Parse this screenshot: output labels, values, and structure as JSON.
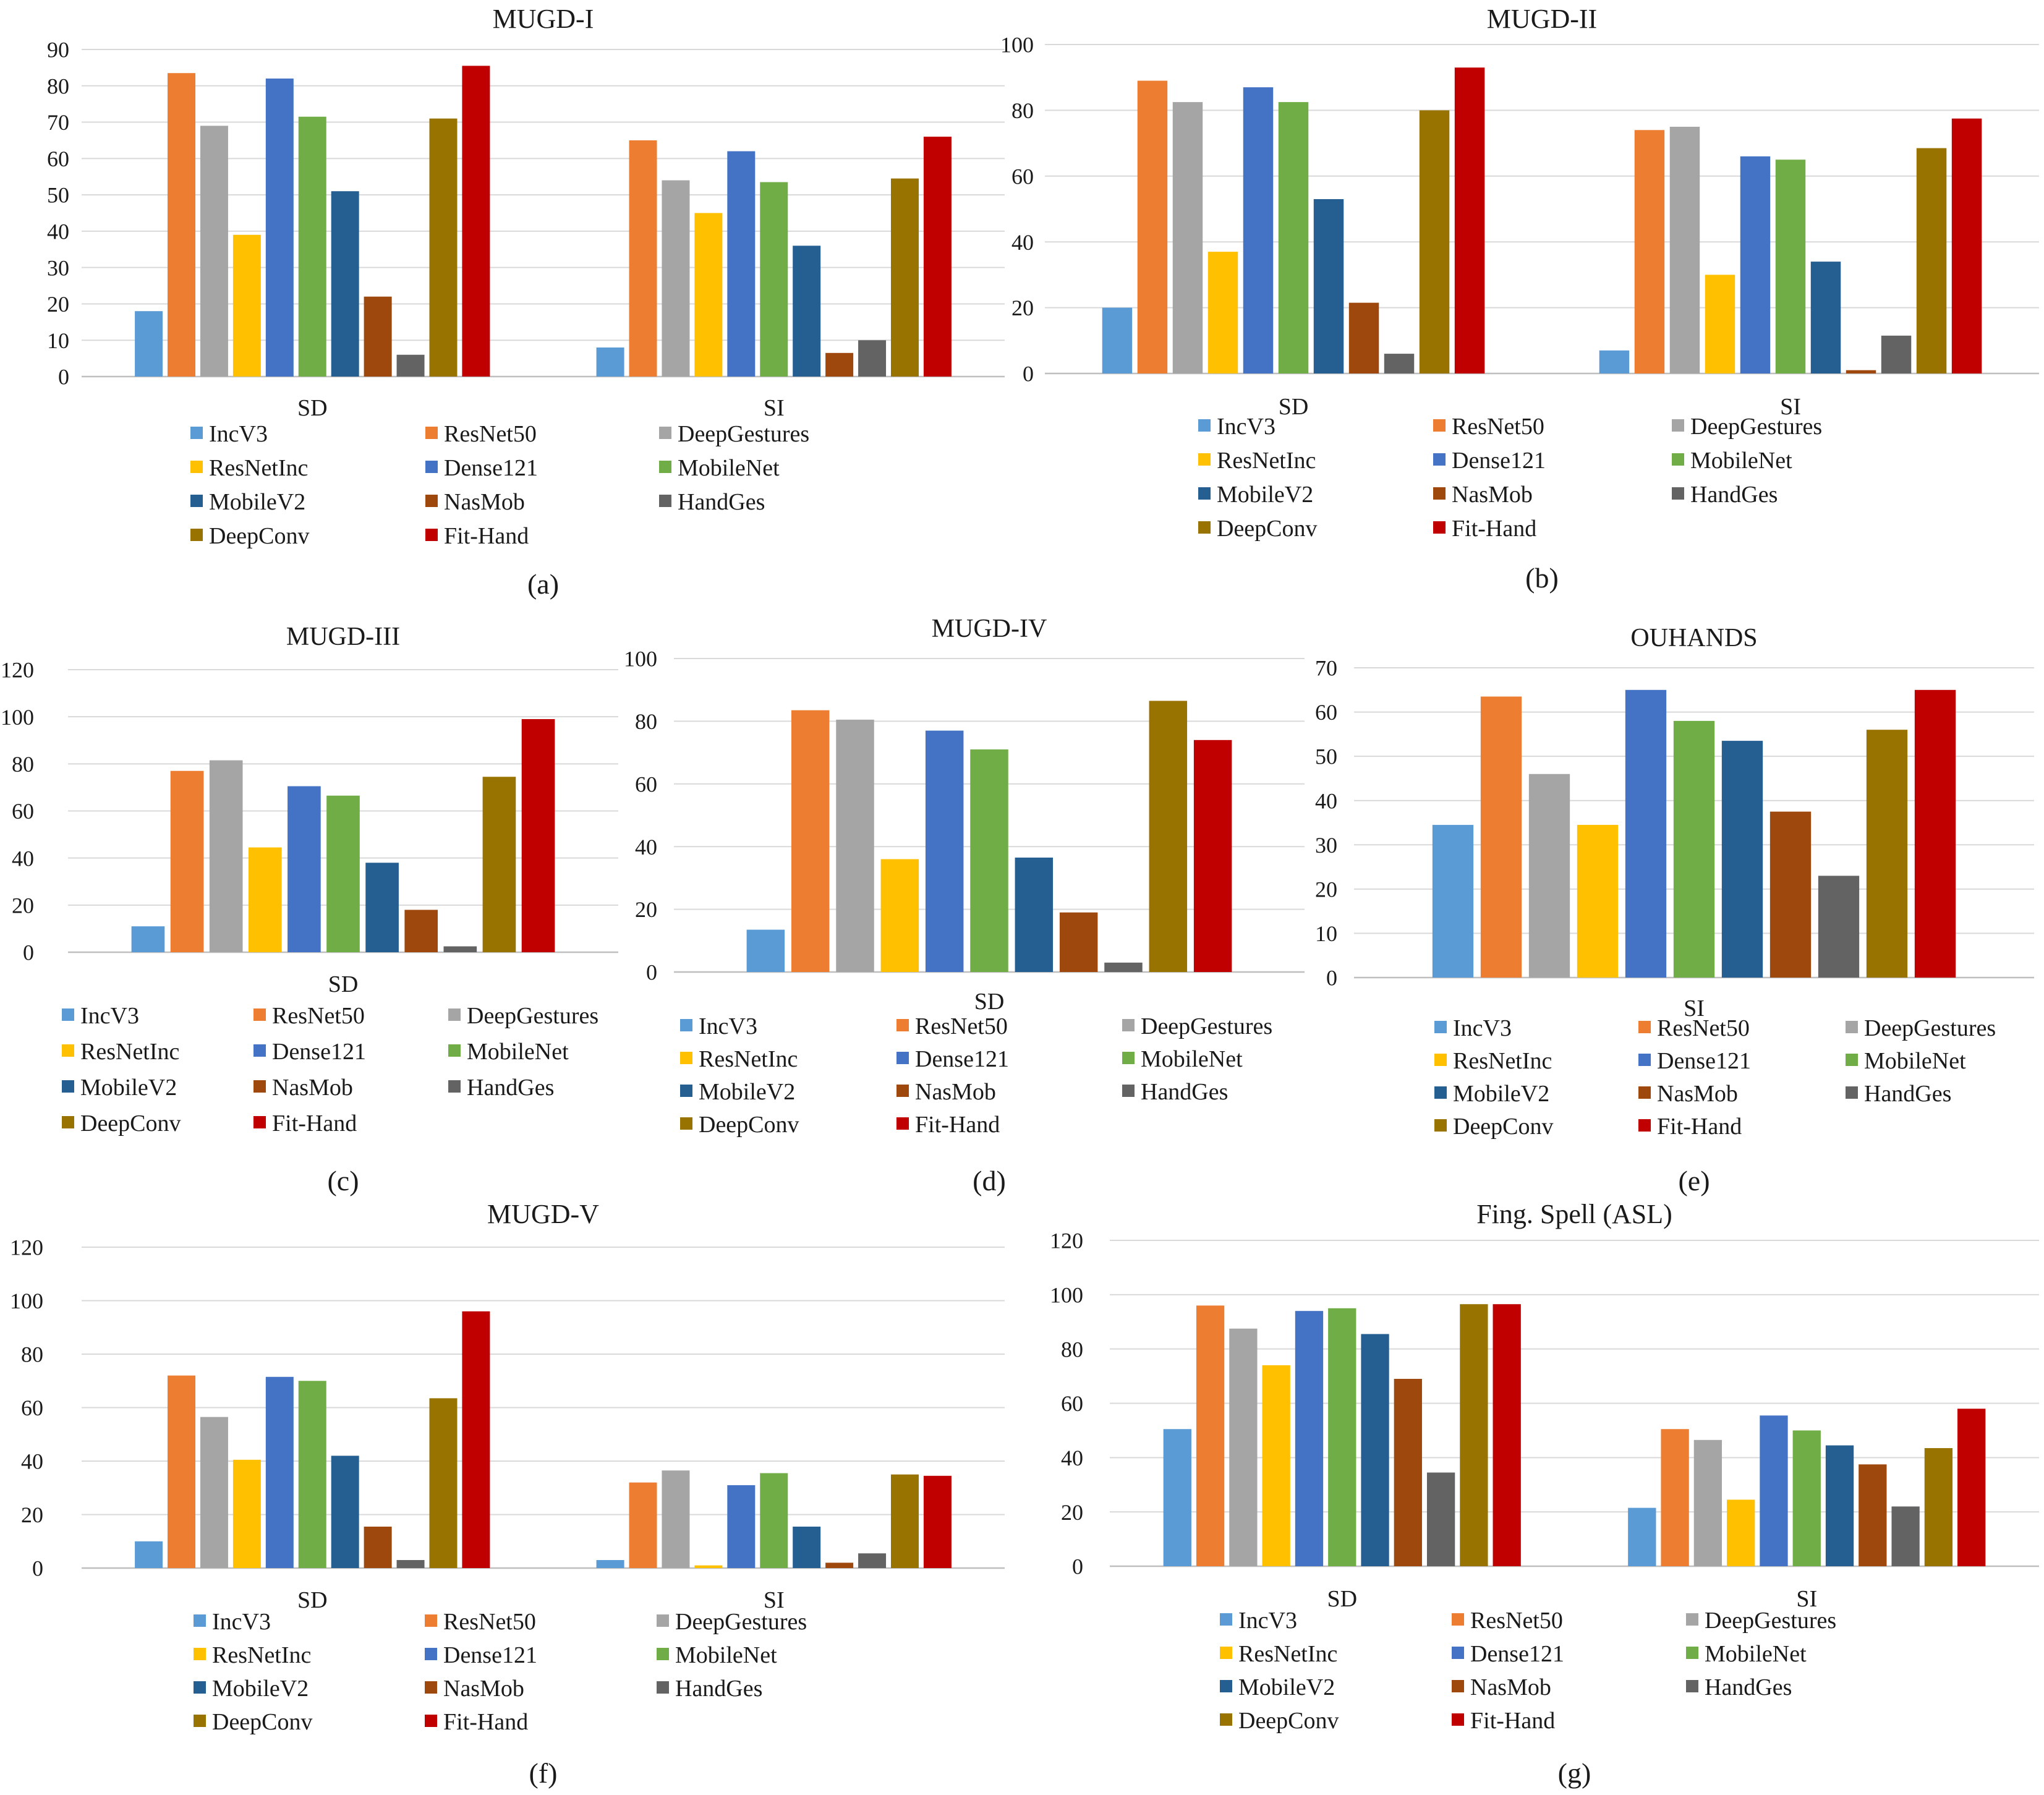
{
  "palette": [
    "#5B9BD5",
    "#ED7D31",
    "#A5A5A5",
    "#FFC000",
    "#4472C4",
    "#70AD47",
    "#255E91",
    "#9E480E",
    "#636363",
    "#997300",
    "#C00000"
  ],
  "legend_labels": [
    "IncV3",
    "ResNet50",
    "DeepGestures",
    "ResNetInc",
    "Dense121",
    "MobileNet",
    "MobileV2",
    "NasMob",
    "HandGes",
    "DeepConv",
    "Fit-Hand"
  ],
  "chart_data": [
    {
      "id": "a",
      "panel_label": "(a)",
      "type": "bar",
      "title": "MUGD-I",
      "categories": [
        "SD",
        "SI"
      ],
      "ylim": [
        0,
        90
      ],
      "ystep": 10,
      "series": [
        {
          "name": "IncV3",
          "values": [
            18,
            8
          ]
        },
        {
          "name": "ResNet50",
          "values": [
            83.5,
            65
          ]
        },
        {
          "name": "DeepGestures",
          "values": [
            69,
            54
          ]
        },
        {
          "name": "ResNetInc",
          "values": [
            39,
            45
          ]
        },
        {
          "name": "Dense121",
          "values": [
            82,
            62
          ]
        },
        {
          "name": "MobileNet",
          "values": [
            71.5,
            53.5
          ]
        },
        {
          "name": "MobileV2",
          "values": [
            51,
            36
          ]
        },
        {
          "name": "NasMob",
          "values": [
            22,
            6.5
          ]
        },
        {
          "name": "HandGes",
          "values": [
            6,
            10
          ]
        },
        {
          "name": "DeepConv",
          "values": [
            71,
            54.5
          ]
        },
        {
          "name": "Fit-Hand",
          "values": [
            85.5,
            66
          ]
        }
      ]
    },
    {
      "id": "b",
      "panel_label": "(b)",
      "type": "bar",
      "title": "MUGD-II",
      "categories": [
        "SD",
        "SI"
      ],
      "ylim": [
        0,
        100
      ],
      "ystep": 20,
      "series": [
        {
          "name": "IncV3",
          "values": [
            20,
            7
          ]
        },
        {
          "name": "ResNet50",
          "values": [
            89,
            74
          ]
        },
        {
          "name": "DeepGestures",
          "values": [
            82.5,
            75
          ]
        },
        {
          "name": "ResNetInc",
          "values": [
            37,
            30
          ]
        },
        {
          "name": "Dense121",
          "values": [
            87,
            66
          ]
        },
        {
          "name": "MobileNet",
          "values": [
            82.5,
            65
          ]
        },
        {
          "name": "MobileV2",
          "values": [
            53,
            34
          ]
        },
        {
          "name": "NasMob",
          "values": [
            21.5,
            1
          ]
        },
        {
          "name": "HandGes",
          "values": [
            6,
            11.5
          ]
        },
        {
          "name": "DeepConv",
          "values": [
            80,
            68.5
          ]
        },
        {
          "name": "Fit-Hand",
          "values": [
            93,
            77.5
          ]
        }
      ]
    },
    {
      "id": "c",
      "panel_label": "(c)",
      "type": "bar",
      "title": "MUGD-III",
      "categories": [
        "SD"
      ],
      "ylim": [
        0,
        120
      ],
      "ystep": 20,
      "series": [
        {
          "name": "IncV3",
          "values": [
            11
          ]
        },
        {
          "name": "ResNet50",
          "values": [
            77
          ]
        },
        {
          "name": "DeepGestures",
          "values": [
            81.5
          ]
        },
        {
          "name": "ResNetInc",
          "values": [
            44.5
          ]
        },
        {
          "name": "Dense121",
          "values": [
            70.5
          ]
        },
        {
          "name": "MobileNet",
          "values": [
            66.5
          ]
        },
        {
          "name": "MobileV2",
          "values": [
            38
          ]
        },
        {
          "name": "NasMob",
          "values": [
            18
          ]
        },
        {
          "name": "HandGes",
          "values": [
            2.5
          ]
        },
        {
          "name": "DeepConv",
          "values": [
            74.5
          ]
        },
        {
          "name": "Fit-Hand",
          "values": [
            99
          ]
        }
      ]
    },
    {
      "id": "d",
      "panel_label": "(d)",
      "type": "bar",
      "title": "MUGD-IV",
      "categories": [
        "SD"
      ],
      "ylim": [
        0,
        100
      ],
      "ystep": 20,
      "series": [
        {
          "name": "IncV3",
          "values": [
            13.5
          ]
        },
        {
          "name": "ResNet50",
          "values": [
            83.5
          ]
        },
        {
          "name": "DeepGestures",
          "values": [
            80.5
          ]
        },
        {
          "name": "ResNetInc",
          "values": [
            36
          ]
        },
        {
          "name": "Dense121",
          "values": [
            77
          ]
        },
        {
          "name": "MobileNet",
          "values": [
            71
          ]
        },
        {
          "name": "MobileV2",
          "values": [
            36.5
          ]
        },
        {
          "name": "NasMob",
          "values": [
            19
          ]
        },
        {
          "name": "HandGes",
          "values": [
            3
          ]
        },
        {
          "name": "DeepConv",
          "values": [
            86.5
          ]
        },
        {
          "name": "Fit-Hand",
          "values": [
            74
          ]
        }
      ]
    },
    {
      "id": "e",
      "panel_label": "(e)",
      "type": "bar",
      "title": "OUHANDS",
      "categories": [
        "SI"
      ],
      "ylim": [
        0,
        70
      ],
      "ystep": 10,
      "series": [
        {
          "name": "IncV3",
          "values": [
            34.5
          ]
        },
        {
          "name": "ResNet50",
          "values": [
            63.5
          ]
        },
        {
          "name": "DeepGestures",
          "values": [
            46
          ]
        },
        {
          "name": "ResNetInc",
          "values": [
            34.5
          ]
        },
        {
          "name": "Dense121",
          "values": [
            65
          ]
        },
        {
          "name": "MobileNet",
          "values": [
            58
          ]
        },
        {
          "name": "MobileV2",
          "values": [
            53.5
          ]
        },
        {
          "name": "NasMob",
          "values": [
            37.5
          ]
        },
        {
          "name": "HandGes",
          "values": [
            23
          ]
        },
        {
          "name": "DeepConv",
          "values": [
            56
          ]
        },
        {
          "name": "Fit-Hand",
          "values": [
            65
          ]
        }
      ]
    },
    {
      "id": "f",
      "panel_label": "(f)",
      "type": "bar",
      "title": "MUGD-V",
      "categories": [
        "SD",
        "SI"
      ],
      "ylim": [
        0,
        120
      ],
      "ystep": 20,
      "series": [
        {
          "name": "IncV3",
          "values": [
            10,
            3
          ]
        },
        {
          "name": "ResNet50",
          "values": [
            72,
            32
          ]
        },
        {
          "name": "DeepGestures",
          "values": [
            56.5,
            36.5
          ]
        },
        {
          "name": "ResNetInc",
          "values": [
            40.5,
            1
          ]
        },
        {
          "name": "Dense121",
          "values": [
            71.5,
            31
          ]
        },
        {
          "name": "MobileNet",
          "values": [
            70,
            35.5
          ]
        },
        {
          "name": "MobileV2",
          "values": [
            42,
            15.5
          ]
        },
        {
          "name": "NasMob",
          "values": [
            15.5,
            2
          ]
        },
        {
          "name": "HandGes",
          "values": [
            3,
            5.5
          ]
        },
        {
          "name": "DeepConv",
          "values": [
            63.5,
            35
          ]
        },
        {
          "name": "Fit-Hand",
          "values": [
            96,
            34.5
          ]
        }
      ]
    },
    {
      "id": "g",
      "panel_label": "(g)",
      "type": "bar",
      "title": "Fing. Spell (ASL)",
      "categories": [
        "SD",
        "SI"
      ],
      "ylim": [
        0,
        120
      ],
      "ystep": 20,
      "series": [
        {
          "name": "IncV3",
          "values": [
            50.5,
            21.5
          ]
        },
        {
          "name": "ResNet50",
          "values": [
            96,
            50.5
          ]
        },
        {
          "name": "DeepGestures",
          "values": [
            87.5,
            46.5
          ]
        },
        {
          "name": "ResNetInc",
          "values": [
            74,
            24.5
          ]
        },
        {
          "name": "Dense121",
          "values": [
            94,
            55.5
          ]
        },
        {
          "name": "MobileNet",
          "values": [
            95,
            50
          ]
        },
        {
          "name": "MobileV2",
          "values": [
            85.5,
            44.5
          ]
        },
        {
          "name": "NasMob",
          "values": [
            69,
            37.5
          ]
        },
        {
          "name": "HandGes",
          "values": [
            34.5,
            22
          ]
        },
        {
          "name": "DeepConv",
          "values": [
            96.5,
            43.5
          ]
        },
        {
          "name": "Fit-Hand",
          "values": [
            96.5,
            58
          ]
        }
      ]
    }
  ]
}
